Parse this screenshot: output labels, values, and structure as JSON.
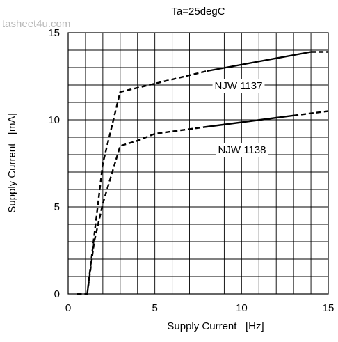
{
  "watermark": "tasheet4u.com",
  "chart_data": {
    "type": "line",
    "title": "Ta=25degC",
    "xlabel": "Supply Current   [Hz]",
    "ylabel": "Supply Current   [mA]",
    "xlim": [
      0,
      15
    ],
    "ylim": [
      0,
      15
    ],
    "x_ticks": [
      0,
      5,
      10,
      15
    ],
    "y_ticks": [
      0,
      5,
      10,
      15
    ],
    "x_tick_labels": [
      "0",
      "5",
      "10",
      "15"
    ],
    "y_tick_labels": [
      "0",
      "5",
      "10",
      "15"
    ],
    "grid": true,
    "grid_step": 1,
    "series": [
      {
        "name": "NJW1137",
        "label": "NJW 1137",
        "segments": [
          {
            "style": "dashed",
            "points": [
              [
                0.5,
                0
              ],
              [
                1.1,
                0
              ],
              [
                2,
                7.5
              ],
              [
                3,
                11.6
              ],
              [
                8,
                12.8
              ]
            ]
          },
          {
            "style": "solid",
            "points": [
              [
                8,
                12.8
              ],
              [
                14,
                13.9
              ]
            ]
          },
          {
            "style": "dashed",
            "points": [
              [
                14,
                13.9
              ],
              [
                15,
                13.9
              ]
            ]
          }
        ]
      },
      {
        "name": "NJW1138",
        "label": "NJW 1138",
        "segments": [
          {
            "style": "dashed",
            "points": [
              [
                1.1,
                0
              ],
              [
                1.5,
                3
              ],
              [
                2,
                5.2
              ],
              [
                3,
                8.5
              ],
              [
                4,
                8.8
              ],
              [
                5,
                9.2
              ],
              [
                8,
                9.6
              ]
            ]
          },
          {
            "style": "solid",
            "points": [
              [
                8,
                9.6
              ],
              [
                13,
                10.25
              ]
            ]
          },
          {
            "style": "dashed",
            "points": [
              [
                13,
                10.25
              ],
              [
                15,
                10.5
              ]
            ]
          }
        ]
      }
    ]
  }
}
